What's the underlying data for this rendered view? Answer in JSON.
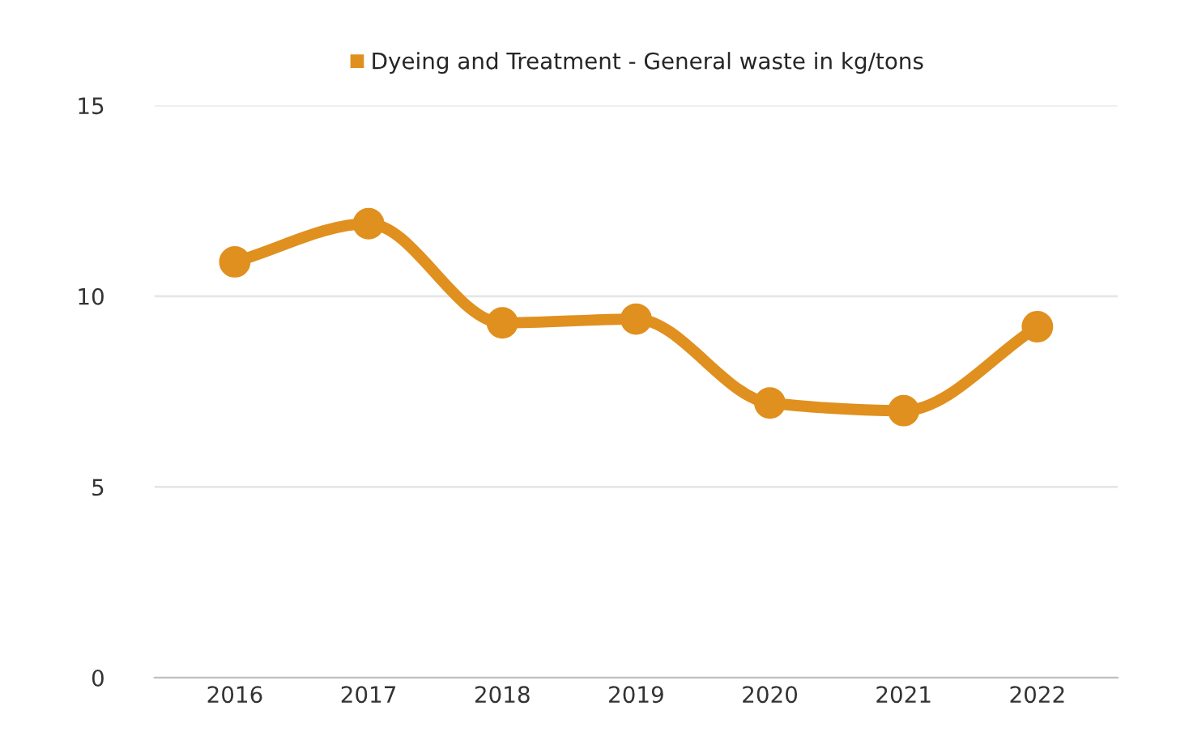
{
  "chart_data": {
    "type": "line",
    "categories": [
      "2016",
      "2017",
      "2018",
      "2019",
      "2020",
      "2021",
      "2022"
    ],
    "series": [
      {
        "name": "Dyeing and Treatment - General waste in kg/tons",
        "color": "#e0901e",
        "values": [
          10.9,
          11.9,
          9.3,
          9.4,
          7.2,
          7.0,
          9.2
        ]
      }
    ],
    "ylim": [
      0,
      15
    ],
    "yticks": [
      0,
      5,
      10,
      15
    ],
    "grid": "y",
    "legend": "top",
    "marker": "circle",
    "line_style": "solid"
  }
}
